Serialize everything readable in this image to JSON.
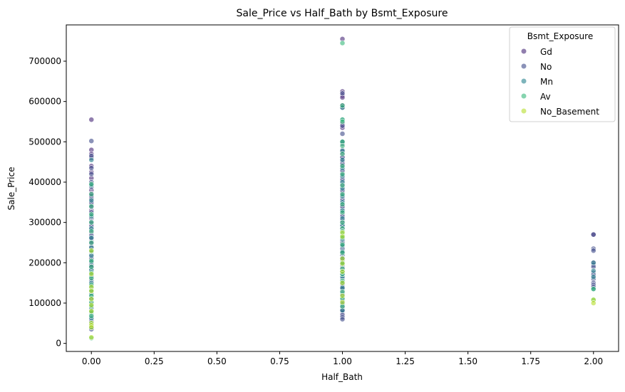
{
  "chart_data": {
    "type": "scatter",
    "title": "Sale_Price vs Half_Bath by Bsmt_Exposure",
    "xlabel": "Half_Bath",
    "ylabel": "Sale_Price",
    "xlim": [
      -0.1,
      2.1
    ],
    "ylim": [
      -20000,
      790000
    ],
    "x_ticks": [
      0.0,
      0.25,
      0.5,
      0.75,
      1.0,
      1.25,
      1.5,
      1.75,
      2.0
    ],
    "x_tick_labels": [
      "0.00",
      "0.25",
      "0.50",
      "0.75",
      "1.00",
      "1.25",
      "1.50",
      "1.75",
      "2.00"
    ],
    "y_ticks": [
      0,
      100000,
      200000,
      300000,
      400000,
      500000,
      600000,
      700000
    ],
    "y_tick_labels": [
      "0",
      "100000",
      "200000",
      "300000",
      "400000",
      "500000",
      "600000",
      "700000"
    ],
    "grid": false,
    "legend": {
      "title": "Bsmt_Exposure",
      "placement": "top-right"
    },
    "series": [
      {
        "name": "Gd",
        "color": "#482878",
        "points": [
          [
            0,
            555000
          ],
          [
            0,
            480000
          ],
          [
            0,
            470000
          ],
          [
            0,
            460000
          ],
          [
            0,
            440000
          ],
          [
            0,
            425000
          ],
          [
            0,
            410000
          ],
          [
            0,
            395000
          ],
          [
            0,
            380000
          ],
          [
            0,
            372000
          ],
          [
            0,
            360000
          ],
          [
            0,
            345000
          ],
          [
            0,
            330000
          ],
          [
            0,
            310000
          ],
          [
            0,
            295000
          ],
          [
            0,
            275000
          ],
          [
            0,
            255000
          ],
          [
            0,
            240000
          ],
          [
            0,
            215000
          ],
          [
            0,
            200000
          ],
          [
            0,
            185000
          ],
          [
            0,
            160000
          ],
          [
            0,
            140000
          ],
          [
            0,
            125000
          ],
          [
            0,
            105000
          ],
          [
            0,
            90000
          ],
          [
            0,
            55000
          ],
          [
            1,
            755000
          ],
          [
            1,
            625000
          ],
          [
            1,
            615000
          ],
          [
            1,
            610000
          ],
          [
            1,
            590000
          ],
          [
            1,
            585000
          ],
          [
            1,
            545000
          ],
          [
            1,
            535000
          ],
          [
            1,
            500000
          ],
          [
            1,
            480000
          ],
          [
            1,
            470000
          ],
          [
            1,
            460000
          ],
          [
            1,
            450000
          ],
          [
            1,
            440000
          ],
          [
            1,
            425000
          ],
          [
            1,
            410000
          ],
          [
            1,
            390000
          ],
          [
            1,
            375000
          ],
          [
            1,
            360000
          ],
          [
            1,
            345000
          ],
          [
            1,
            335000
          ],
          [
            1,
            320000
          ],
          [
            1,
            305000
          ],
          [
            1,
            290000
          ],
          [
            1,
            255000
          ],
          [
            1,
            245000
          ],
          [
            1,
            230000
          ],
          [
            1,
            210000
          ],
          [
            1,
            190000
          ],
          [
            1,
            175000
          ],
          [
            1,
            145000
          ],
          [
            1,
            130000
          ],
          [
            1,
            115000
          ],
          [
            1,
            100000
          ],
          [
            1,
            85000
          ],
          [
            1,
            75000
          ],
          [
            2,
            270000
          ],
          [
            2,
            200000
          ]
        ]
      },
      {
        "name": "No",
        "color": "#3e4a89",
        "points": [
          [
            0,
            502000
          ],
          [
            0,
            465000
          ],
          [
            0,
            435000
          ],
          [
            0,
            420000
          ],
          [
            0,
            400000
          ],
          [
            0,
            388000
          ],
          [
            0,
            366000
          ],
          [
            0,
            350000
          ],
          [
            0,
            338000
          ],
          [
            0,
            325000
          ],
          [
            0,
            318000
          ],
          [
            0,
            302000
          ],
          [
            0,
            290000
          ],
          [
            0,
            282000
          ],
          [
            0,
            268000
          ],
          [
            0,
            260000
          ],
          [
            0,
            248000
          ],
          [
            0,
            232000
          ],
          [
            0,
            225000
          ],
          [
            0,
            210000
          ],
          [
            0,
            195000
          ],
          [
            0,
            190000
          ],
          [
            0,
            178000
          ],
          [
            0,
            170000
          ],
          [
            0,
            165000
          ],
          [
            0,
            155000
          ],
          [
            0,
            148000
          ],
          [
            0,
            142000
          ],
          [
            0,
            135000
          ],
          [
            0,
            128000
          ],
          [
            0,
            120000
          ],
          [
            0,
            115000
          ],
          [
            0,
            110000
          ],
          [
            0,
            100000
          ],
          [
            0,
            95000
          ],
          [
            0,
            85000
          ],
          [
            0,
            80000
          ],
          [
            0,
            72000
          ],
          [
            0,
            65000
          ],
          [
            0,
            45000
          ],
          [
            0,
            35000
          ],
          [
            1,
            620000
          ],
          [
            1,
            540000
          ],
          [
            1,
            520000
          ],
          [
            1,
            495000
          ],
          [
            1,
            475000
          ],
          [
            1,
            462000
          ],
          [
            1,
            445000
          ],
          [
            1,
            430000
          ],
          [
            1,
            418000
          ],
          [
            1,
            405000
          ],
          [
            1,
            395000
          ],
          [
            1,
            380000
          ],
          [
            1,
            368000
          ],
          [
            1,
            355000
          ],
          [
            1,
            340000
          ],
          [
            1,
            328000
          ],
          [
            1,
            315000
          ],
          [
            1,
            300000
          ],
          [
            1,
            295000
          ],
          [
            1,
            285000
          ],
          [
            1,
            275000
          ],
          [
            1,
            265000
          ],
          [
            1,
            250000
          ],
          [
            1,
            240000
          ],
          [
            1,
            235000
          ],
          [
            1,
            225000
          ],
          [
            1,
            218000
          ],
          [
            1,
            205000
          ],
          [
            1,
            198000
          ],
          [
            1,
            185000
          ],
          [
            1,
            180000
          ],
          [
            1,
            170000
          ],
          [
            1,
            160000
          ],
          [
            1,
            152000
          ],
          [
            1,
            140000
          ],
          [
            1,
            135000
          ],
          [
            1,
            125000
          ],
          [
            1,
            120000
          ],
          [
            1,
            110000
          ],
          [
            1,
            105000
          ],
          [
            1,
            95000
          ],
          [
            1,
            90000
          ],
          [
            1,
            80000
          ],
          [
            1,
            70000
          ],
          [
            1,
            65000
          ],
          [
            1,
            60000
          ],
          [
            2,
            270000
          ],
          [
            2,
            235000
          ],
          [
            2,
            230000
          ],
          [
            2,
            195000
          ],
          [
            2,
            190000
          ],
          [
            2,
            175000
          ],
          [
            2,
            170000
          ],
          [
            2,
            160000
          ],
          [
            2,
            150000
          ],
          [
            2,
            145000
          ],
          [
            2,
            140000
          ]
        ]
      },
      {
        "name": "Mn",
        "color": "#26828e",
        "points": [
          [
            0,
            455000
          ],
          [
            0,
            392000
          ],
          [
            0,
            355000
          ],
          [
            0,
            315000
          ],
          [
            0,
            285000
          ],
          [
            0,
            262000
          ],
          [
            0,
            238000
          ],
          [
            0,
            218000
          ],
          [
            0,
            202000
          ],
          [
            0,
            182000
          ],
          [
            0,
            168000
          ],
          [
            0,
            150000
          ],
          [
            0,
            138000
          ],
          [
            0,
            122000
          ],
          [
            0,
            112000
          ],
          [
            0,
            98000
          ],
          [
            0,
            88000
          ],
          [
            0,
            75000
          ],
          [
            0,
            62000
          ],
          [
            0,
            40000
          ],
          [
            1,
            585000
          ],
          [
            1,
            555000
          ],
          [
            1,
            500000
          ],
          [
            1,
            478000
          ],
          [
            1,
            455000
          ],
          [
            1,
            435000
          ],
          [
            1,
            415000
          ],
          [
            1,
            400000
          ],
          [
            1,
            385000
          ],
          [
            1,
            365000
          ],
          [
            1,
            350000
          ],
          [
            1,
            330000
          ],
          [
            1,
            310000
          ],
          [
            1,
            292000
          ],
          [
            1,
            270000
          ],
          [
            1,
            258000
          ],
          [
            1,
            242000
          ],
          [
            1,
            228000
          ],
          [
            1,
            212000
          ],
          [
            1,
            195000
          ],
          [
            1,
            178000
          ],
          [
            1,
            165000
          ],
          [
            1,
            150000
          ],
          [
            1,
            138000
          ],
          [
            1,
            122000
          ],
          [
            1,
            108000
          ],
          [
            1,
            98000
          ],
          [
            1,
            82000
          ],
          [
            2,
            200000
          ],
          [
            2,
            180000
          ],
          [
            2,
            165000
          ],
          [
            2,
            135000
          ]
        ]
      },
      {
        "name": "Av",
        "color": "#35b779",
        "points": [
          [
            0,
            395000
          ],
          [
            0,
            370000
          ],
          [
            0,
            340000
          ],
          [
            0,
            320000
          ],
          [
            0,
            300000
          ],
          [
            0,
            278000
          ],
          [
            0,
            250000
          ],
          [
            0,
            228000
          ],
          [
            0,
            205000
          ],
          [
            0,
            190000
          ],
          [
            0,
            175000
          ],
          [
            0,
            162000
          ],
          [
            0,
            145000
          ],
          [
            0,
            132000
          ],
          [
            0,
            118000
          ],
          [
            0,
            102000
          ],
          [
            0,
            92000
          ],
          [
            0,
            78000
          ],
          [
            0,
            68000
          ],
          [
            0,
            50000
          ],
          [
            0,
            13000
          ],
          [
            1,
            745000
          ],
          [
            1,
            590000
          ],
          [
            1,
            555000
          ],
          [
            1,
            550000
          ],
          [
            1,
            500000
          ],
          [
            1,
            490000
          ],
          [
            1,
            470000
          ],
          [
            1,
            440000
          ],
          [
            1,
            420000
          ],
          [
            1,
            392000
          ],
          [
            1,
            370000
          ],
          [
            1,
            345000
          ],
          [
            1,
            325000
          ],
          [
            1,
            300000
          ],
          [
            1,
            285000
          ],
          [
            1,
            278000
          ],
          [
            1,
            272000
          ],
          [
            1,
            268000
          ],
          [
            1,
            262000
          ],
          [
            1,
            245000
          ],
          [
            1,
            225000
          ],
          [
            1,
            200000
          ],
          [
            1,
            185000
          ],
          [
            1,
            172000
          ],
          [
            1,
            155000
          ],
          [
            1,
            128000
          ],
          [
            1,
            112000
          ],
          [
            1,
            92000
          ],
          [
            2,
            135000
          ],
          [
            2,
            108000
          ]
        ]
      },
      {
        "name": "No_Basement",
        "color": "#b5de2b",
        "points": [
          [
            0,
            230000
          ],
          [
            0,
            172000
          ],
          [
            0,
            140000
          ],
          [
            0,
            130000
          ],
          [
            0,
            110000
          ],
          [
            0,
            95000
          ],
          [
            0,
            80000
          ],
          [
            0,
            50000
          ],
          [
            0,
            45000
          ],
          [
            0,
            40000
          ],
          [
            0,
            15000
          ],
          [
            1,
            275000
          ],
          [
            1,
            265000
          ],
          [
            1,
            210000
          ],
          [
            1,
            198000
          ],
          [
            1,
            178000
          ],
          [
            1,
            150000
          ],
          [
            1,
            118000
          ],
          [
            1,
            102000
          ],
          [
            2,
            108000
          ],
          [
            2,
            100000
          ]
        ]
      }
    ]
  }
}
